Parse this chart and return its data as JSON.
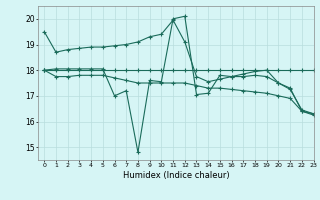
{
  "xlabel": "Humidex (Indice chaleur)",
  "background_color": "#d6f5f5",
  "grid_color": "#b8dede",
  "line_color": "#1a6b5a",
  "xlim": [
    -0.5,
    23
  ],
  "ylim": [
    14.5,
    20.5
  ],
  "xticks": [
    0,
    1,
    2,
    3,
    4,
    5,
    6,
    7,
    8,
    9,
    10,
    11,
    12,
    13,
    14,
    15,
    16,
    17,
    18,
    19,
    20,
    21,
    22,
    23
  ],
  "yticks": [
    15,
    16,
    17,
    18,
    19,
    20
  ],
  "series": [
    {
      "x": [
        0,
        1,
        2,
        3,
        4,
        5,
        6,
        7,
        8,
        9,
        10,
        11,
        12,
        13,
        14,
        15,
        16,
        17,
        18,
        19,
        20,
        21,
        22,
        23
      ],
      "y": [
        18.0,
        18.05,
        18.05,
        18.05,
        18.05,
        18.05,
        17.0,
        17.2,
        14.8,
        17.6,
        17.55,
        20.0,
        20.1,
        17.05,
        17.1,
        17.8,
        17.75,
        17.75,
        17.8,
        17.75,
        17.5,
        17.3,
        16.4,
        16.3
      ]
    },
    {
      "x": [
        0,
        1,
        2,
        3,
        4,
        5,
        6,
        7,
        8,
        9,
        10,
        11,
        12,
        13,
        14,
        15,
        16,
        17,
        18,
        19,
        20,
        21,
        22,
        23
      ],
      "y": [
        18.0,
        18.0,
        18.0,
        18.0,
        18.0,
        18.0,
        18.0,
        18.0,
        18.0,
        18.0,
        18.0,
        18.0,
        18.0,
        18.0,
        18.0,
        18.0,
        18.0,
        18.0,
        18.0,
        18.0,
        18.0,
        18.0,
        18.0,
        18.0
      ]
    },
    {
      "x": [
        0,
        1,
        2,
        3,
        4,
        5,
        6,
        7,
        8,
        9,
        10,
        11,
        12,
        13,
        14,
        15,
        16,
        17,
        18,
        19,
        20,
        21,
        22,
        23
      ],
      "y": [
        19.5,
        18.7,
        18.8,
        18.85,
        18.9,
        18.9,
        18.95,
        19.0,
        19.1,
        19.3,
        19.4,
        19.95,
        19.1,
        17.75,
        17.55,
        17.65,
        17.75,
        17.85,
        17.95,
        18.0,
        17.5,
        17.25,
        16.45,
        16.3
      ]
    },
    {
      "x": [
        0,
        1,
        2,
        3,
        4,
        5,
        6,
        7,
        8,
        9,
        10,
        11,
        12,
        13,
        14,
        15,
        16,
        17,
        18,
        19,
        20,
        21,
        22,
        23
      ],
      "y": [
        18.0,
        17.75,
        17.75,
        17.8,
        17.8,
        17.8,
        17.7,
        17.6,
        17.5,
        17.5,
        17.5,
        17.5,
        17.5,
        17.4,
        17.3,
        17.3,
        17.25,
        17.2,
        17.15,
        17.1,
        17.0,
        16.9,
        16.4,
        16.25
      ]
    }
  ]
}
